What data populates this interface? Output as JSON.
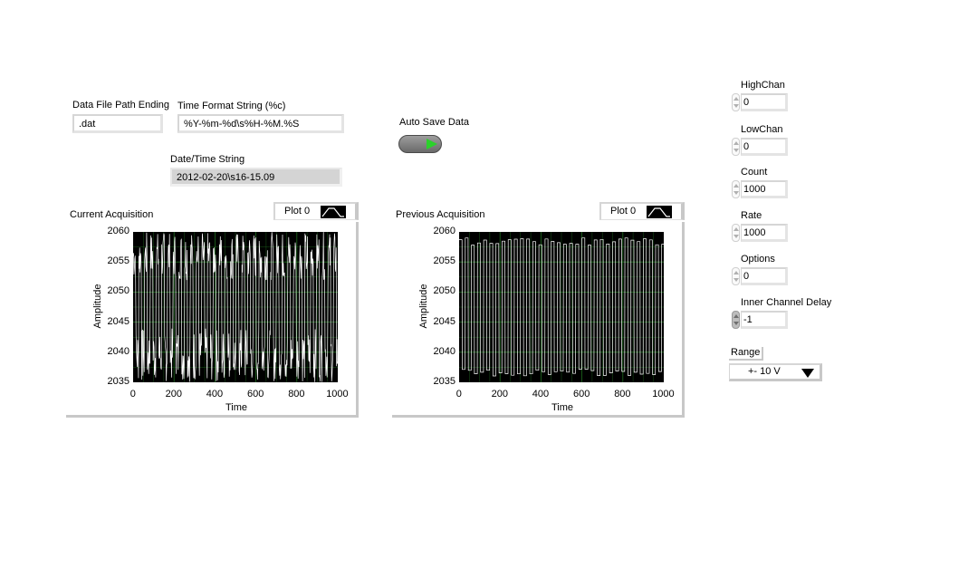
{
  "labels": {
    "data_file_path_ending": "Data File Path Ending",
    "time_format_string": "Time Format String (%c)",
    "date_time_string": "Date/Time String",
    "auto_save_data": "Auto Save Data"
  },
  "values": {
    "data_file_path_ending": ".dat",
    "time_format_string": "%Y-%m-%d\\s%H-%M.%S",
    "date_time_string": "2012-02-20\\s16-15.09",
    "auto_save_on": true
  },
  "numerics": [
    {
      "id": "highchan",
      "label": "HighChan",
      "value": "0"
    },
    {
      "id": "lowchan",
      "label": "LowChan",
      "value": "0"
    },
    {
      "id": "count",
      "label": "Count",
      "value": "1000"
    },
    {
      "id": "rate",
      "label": "Rate",
      "value": "1000"
    },
    {
      "id": "options",
      "label": "Options",
      "value": "0"
    },
    {
      "id": "inner-channel-delay",
      "label": "Inner Channel Delay",
      "value": "-1"
    }
  ],
  "range": {
    "label": "Range",
    "value": "+- 10 V"
  },
  "colors": {
    "plot_bg": "#000000",
    "trace": "#ffffff",
    "grid": "#1f6b1f",
    "led_on": "#2bd12b"
  },
  "chart_data": [
    {
      "type": "line",
      "title": "Current Acquisition",
      "legend": [
        "Plot 0"
      ],
      "xlabel": "Time",
      "ylabel": "Amplitude",
      "xlim": [
        0,
        1000
      ],
      "ylim": [
        2035,
        2060
      ],
      "x_ticks": [
        "0",
        "200",
        "400",
        "600",
        "800",
        "1000"
      ],
      "y_ticks": [
        "2060",
        "2055",
        "2050",
        "2045",
        "2040",
        "2035"
      ],
      "grid": true,
      "series": [
        {
          "name": "Plot 0",
          "pattern": "bands",
          "levels": [
            2058,
            2036
          ],
          "noise_low": [
            2052,
            2060
          ],
          "noise_high": [
            2035,
            2044
          ],
          "period": 14
        }
      ]
    },
    {
      "type": "line",
      "title": "Previous Acquisition",
      "legend": [
        "Plot 0"
      ],
      "xlabel": "Time",
      "ylabel": "Amplitude",
      "xlim": [
        0,
        1000
      ],
      "ylim": [
        2035,
        2060
      ],
      "x_ticks": [
        "0",
        "200",
        "400",
        "600",
        "800",
        "1000"
      ],
      "y_ticks": [
        "2060",
        "2055",
        "2050",
        "2045",
        "2040",
        "2035"
      ],
      "grid": true,
      "series": [
        {
          "name": "Plot 0",
          "pattern": "square",
          "levels": [
            2059,
            2036
          ],
          "period": 30
        }
      ]
    }
  ]
}
